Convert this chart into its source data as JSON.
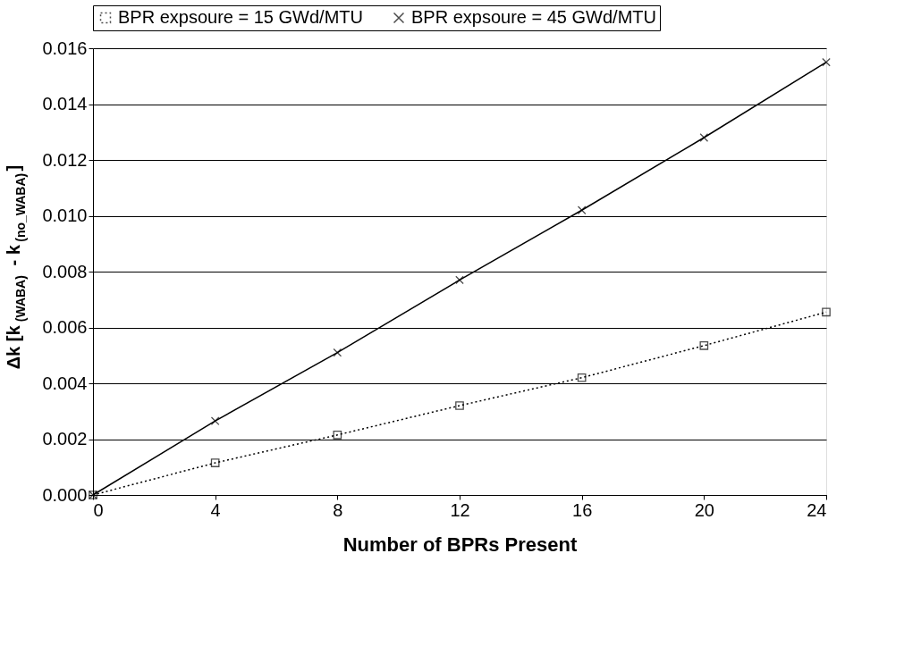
{
  "chart_data": {
    "type": "line",
    "xlabel": "Number of BPRs Present",
    "ylabel": "Δk [k$_{(WABA)}$ - k$_{(no_WABA)}$]",
    "x": [
      0,
      4,
      8,
      12,
      16,
      20,
      24
    ],
    "series": [
      {
        "name": "BPR expsoure = 15 GWd/MTU",
        "color": "#000000",
        "marker": "square",
        "line_style": "dotted",
        "values": [
          0.0,
          0.00115,
          0.00215,
          0.0032,
          0.0042,
          0.00535,
          0.00655
        ]
      },
      {
        "name": "BPR expsoure = 45 GWd/MTU",
        "color": "#000000",
        "marker": "cross",
        "line_style": "solid",
        "values": [
          0.0,
          0.00265,
          0.0051,
          0.0077,
          0.0102,
          0.0128,
          0.0155
        ]
      }
    ],
    "xlim": [
      0,
      24
    ],
    "xticks": [
      0,
      4,
      8,
      12,
      16,
      20,
      24
    ],
    "ylim": [
      0,
      0.016
    ],
    "yticks": [
      {
        "value": 0,
        "label": "0.000"
      },
      {
        "value": 0.002,
        "label": "0.002"
      },
      {
        "value": 0.004,
        "label": "0.004"
      },
      {
        "value": 0.006,
        "label": "0.006"
      },
      {
        "value": 0.008,
        "label": "0.008"
      },
      {
        "value": 0.01,
        "label": "0.010"
      },
      {
        "value": 0.012,
        "label": "0.012"
      },
      {
        "value": 0.014,
        "label": "0.014"
      },
      {
        "value": 0.016,
        "label": "0.016"
      }
    ],
    "grid": "y",
    "legend": "top"
  }
}
